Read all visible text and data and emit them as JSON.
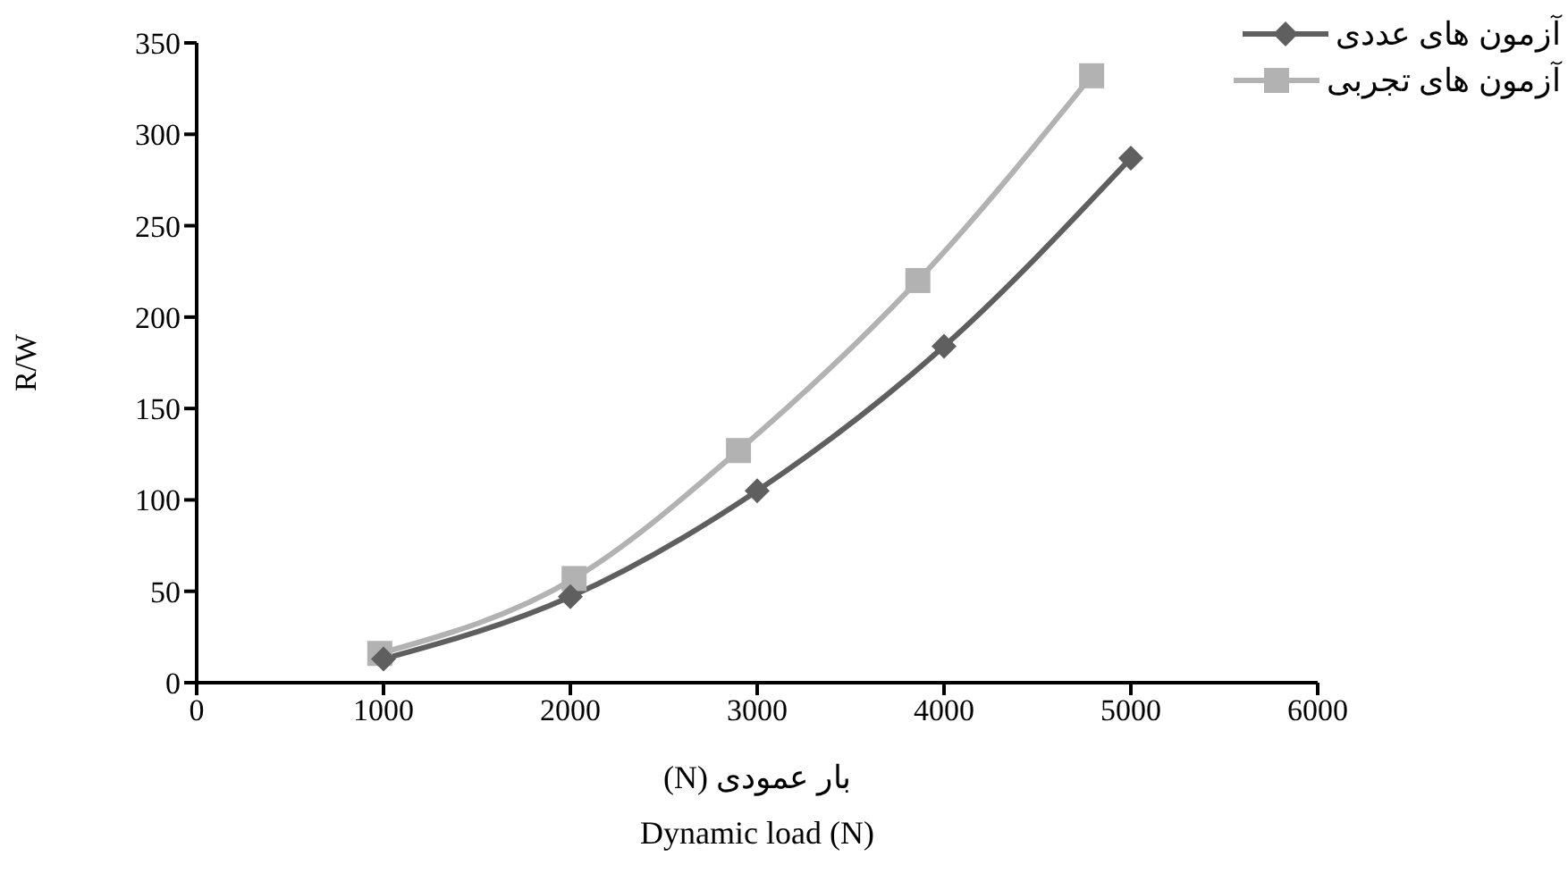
{
  "chart_data": {
    "type": "line",
    "xlabel": "بار عمودی (N)",
    "ylabel": "R/W",
    "annotations": [
      "Dynamic load (N)"
    ],
    "xlim": [
      0,
      6000
    ],
    "xticks": [
      0,
      1000,
      2000,
      3000,
      4000,
      5000,
      6000
    ],
    "ylim": [
      0,
      350
    ],
    "yticks": [
      0,
      50,
      100,
      150,
      200,
      250,
      300,
      350
    ],
    "grid": false,
    "legend": "top right",
    "line_style": "solid",
    "series": [
      {
        "name": "آزمون های عددی",
        "color": "#5f5f5f",
        "marker": "diamond",
        "x": [
          1000,
          2000,
          3000,
          4000,
          5000
        ],
        "values": [
          13,
          47,
          105,
          184,
          287
        ]
      },
      {
        "name": "آزمون های تجربی",
        "color": "#b2b2b2",
        "marker": "square",
        "x": [
          980,
          2020,
          2900,
          3860,
          4790
        ],
        "values": [
          16,
          57,
          127,
          220,
          332
        ]
      }
    ]
  }
}
